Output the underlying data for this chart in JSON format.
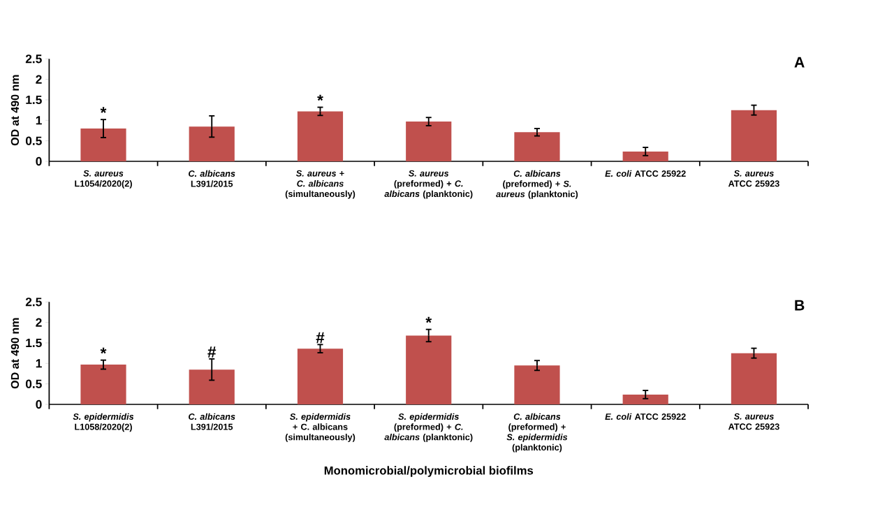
{
  "chart_data": [
    {
      "type": "bar",
      "ylabel": "OD at 490 nm",
      "color": "#c0504d",
      "categories": [
        "*S. aureus* L1054/2020(2)",
        "*C. albicans* L391/2015",
        "*S. aureus* + *C. albicans* (simultaneously)",
        "*S. aureus* (preformed) + *C. albicans* (planktonic)",
        "*C. albicans* (preformed) + *S. aureus* (planktonic)",
        "*E. coli* ATCC 25922",
        "*S. aureus* ATCC 25923"
      ],
      "values": [
        0.8,
        0.85,
        1.22,
        0.97,
        0.71,
        0.24,
        1.25
      ],
      "errors": [
        0.22,
        0.26,
        0.1,
        0.1,
        0.09,
        0.1,
        0.12
      ],
      "ylim": [
        0,
        2.5
      ],
      "yticks": [
        0,
        0.5,
        1,
        1.5,
        2,
        2.5
      ],
      "annotations": [
        "A",
        {
          "text": "*",
          "x": "*S. aureus* L1054/2020(2)",
          "y": 1.03
        },
        {
          "text": "*",
          "x": "*S. aureus* + *C. albicans* (simultaneously)",
          "y": 1.33
        }
      ]
    },
    {
      "type": "bar",
      "ylabel": "OD at 490 nm",
      "xlabel": "Monomicrobial/polymicrobial biofilms",
      "color": "#c0504d",
      "categories": [
        "*S. epidermidis* L1058/2020(2)",
        "*C. albicans* L391/2015",
        "*S. epidermidis* + C. albicans (simultaneously)",
        "*S. epidermidis* (preformed) + *C. albicans* (planktonic)",
        "*C. albicans* (preformed) + *S. epidermidis* (planktonic)",
        "*E. coli* ATCC 25922",
        "*S. aureus* ATCC 25923"
      ],
      "values": [
        0.97,
        0.85,
        1.36,
        1.68,
        0.95,
        0.24,
        1.25
      ],
      "errors": [
        0.11,
        0.26,
        0.1,
        0.15,
        0.12,
        0.1,
        0.12
      ],
      "ylim": [
        0,
        2.5
      ],
      "yticks": [
        0,
        0.5,
        1,
        1.5,
        2,
        2.5
      ],
      "annotations": [
        "B",
        {
          "text": "*",
          "x": "*S. epidermidis* L1058/2020(2)",
          "y": 1.09
        },
        {
          "text": "#",
          "x": "*C. albicans* L391/2015",
          "y": 1.12
        },
        {
          "text": "#",
          "x": "*S. epidermidis* + C. albicans (simultaneously)",
          "y": 1.47
        },
        {
          "text": "*",
          "x": "*S. epidermidis* (preformed) + *C. albicans* (planktonic)",
          "y": 1.84
        }
      ]
    }
  ]
}
